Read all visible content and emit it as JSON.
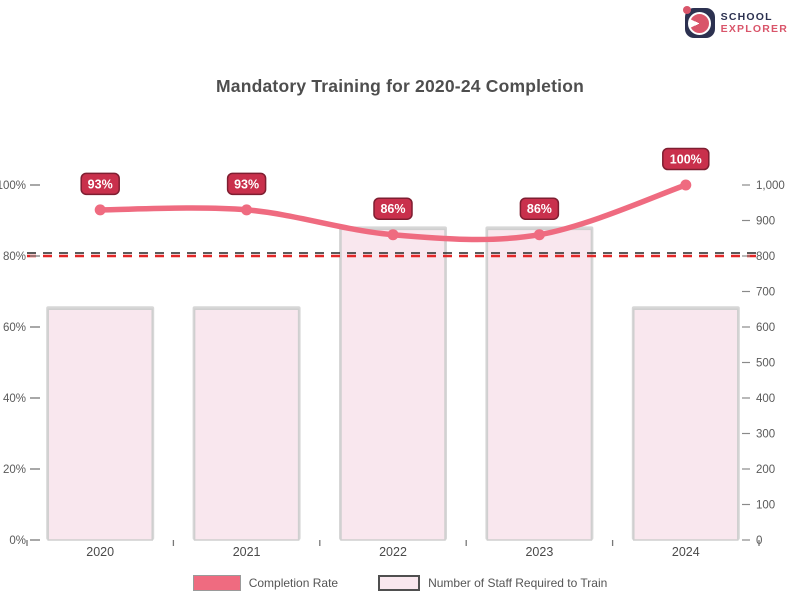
{
  "logo": {
    "icon": "globe-icon",
    "line1": "SCHOOL",
    "line2": "EXPLORER"
  },
  "title": "Mandatory Training for 2020-24 Completion",
  "chart_data": {
    "type": "combo",
    "categories": [
      "2020",
      "2021",
      "2022",
      "2023",
      "2024"
    ],
    "series": [
      {
        "name": "Number of Staff Required to Train",
        "type": "bar",
        "axis": "right",
        "values": [
          650,
          650,
          875,
          875,
          650
        ]
      },
      {
        "name": "Completion Rate",
        "type": "line",
        "axis": "left",
        "values": [
          93,
          93,
          86,
          86,
          100
        ],
        "point_labels": [
          "93%",
          "93%",
          "86%",
          "86%",
          "100%"
        ]
      }
    ],
    "threshold": {
      "value": 80,
      "style": "dashed",
      "color": "#e12626"
    },
    "left_axis": {
      "min": 0,
      "max": 100,
      "ticks": [
        "100%",
        "80%",
        "60%",
        "40%",
        "20%",
        "0%"
      ]
    },
    "right_axis": {
      "min": 0,
      "max": 1000,
      "ticks": [
        "1,000",
        "900",
        "800",
        "700",
        "600",
        "500",
        "400",
        "300",
        "200",
        "100",
        "0"
      ]
    },
    "grid": false,
    "legend_position": "bottom"
  },
  "legend": {
    "items": [
      {
        "label": "Completion Rate",
        "swatch": "line"
      },
      {
        "label": "Number of Staff Required to Train",
        "swatch": "bar"
      }
    ]
  },
  "colors": {
    "line": "#ef6b80",
    "marker": "#ef6b80",
    "bar_fill": "#f9e7ee",
    "bar_border": "#cfcfcf",
    "badge_fill": "#c9304c",
    "badge_border": "#7e1e31",
    "badge_text": "#ffffff",
    "threshold": "#e12626",
    "threshold_shadow": "#3f3f3f",
    "axis_text": "#5a5a5a",
    "title_text": "#4e4e4e",
    "logo_navy": "#2c3150",
    "logo_red": "#d9556a"
  }
}
